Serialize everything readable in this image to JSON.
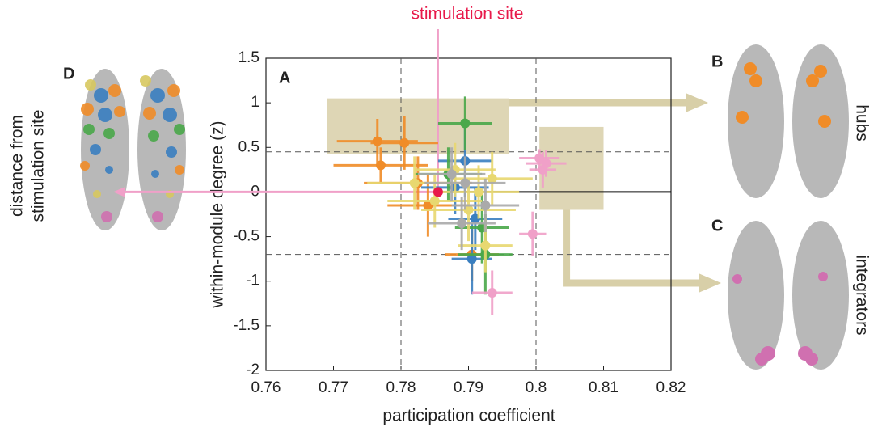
{
  "chart_data": {
    "type": "scatter",
    "stimulation_label": "stimulation site",
    "stimulation_x": 0.7855,
    "xlabel": "participation coefficient",
    "ylabel": "within-module degree (z)",
    "panel_labels": [
      "A",
      "B",
      "C",
      "D"
    ],
    "hubs_label": "hubs",
    "integrators_label": "integrators",
    "distance_label": [
      "distance from",
      "stimulation site"
    ],
    "xlim": [
      0.76,
      0.82
    ],
    "ylim": [
      -2,
      1.5
    ],
    "xticks": [
      0.76,
      0.77,
      0.78,
      0.79,
      0.8,
      0.81,
      0.82
    ],
    "yticks": [
      1.5,
      1,
      0.5,
      0,
      -0.5,
      -1,
      -1.5,
      -2
    ],
    "reference_x": [
      0.78,
      0.8
    ],
    "reference_y": [
      0.45,
      -0.7
    ],
    "hub_region": {
      "xlim": [
        0.769,
        0.796
      ],
      "ylim": [
        0.43,
        1.05
      ]
    },
    "integrator_region": {
      "xlim": [
        0.8005,
        0.81
      ],
      "ylim": [
        -0.2,
        0.73
      ]
    },
    "series": [
      {
        "color": "#f08c28",
        "x": [
          0.7765,
          0.7805,
          0.777,
          0.7825,
          0.784,
          0.7905
        ],
        "y": [
          0.57,
          0.55,
          0.3,
          0.1,
          -0.15,
          -0.7
        ],
        "xerr": [
          0.006,
          0.005,
          0.007,
          0.008,
          0.006,
          0.004
        ],
        "yerr": [
          0.25,
          0.3,
          0.2,
          0.3,
          0.35,
          0.3
        ]
      },
      {
        "color": "#3a7fc0",
        "x": [
          0.7895,
          0.788,
          0.791,
          0.7905
        ],
        "y": [
          0.35,
          0.05,
          -0.3,
          -0.75
        ],
        "xerr": [
          0.004,
          0.005,
          0.004,
          0.003
        ],
        "yerr": [
          0.4,
          0.3,
          0.35,
          0.4
        ]
      },
      {
        "color": "#4aa84a",
        "x": [
          0.7895,
          0.787,
          0.792,
          0.7925
        ],
        "y": [
          0.77,
          0.2,
          -0.4,
          -0.7
        ],
        "xerr": [
          0.004,
          0.005,
          0.004,
          0.004
        ],
        "yerr": [
          0.3,
          0.3,
          0.4,
          0.45
        ]
      },
      {
        "color": "#e8d870",
        "x": [
          0.782,
          0.785,
          0.788,
          0.79,
          0.7915,
          0.7925,
          0.7935
        ],
        "y": [
          0.1,
          -0.1,
          0.25,
          -0.2,
          0,
          -0.6,
          0.15
        ],
        "xerr": [
          0.007,
          0.007,
          0.006,
          0.007,
          0.006,
          0.004,
          0.006
        ],
        "yerr": [
          0.3,
          0.3,
          0.3,
          0.35,
          0.3,
          0.3,
          0.3
        ]
      },
      {
        "color": "#aaaaaa",
        "x": [
          0.7875,
          0.7895,
          0.7925,
          0.789
        ],
        "y": [
          0.2,
          0.1,
          -0.15,
          -0.35
        ],
        "xerr": [
          0.005,
          0.006,
          0.005,
          0.005
        ],
        "yerr": [
          0.3,
          0.3,
          0.3,
          0.3
        ]
      },
      {
        "color": "#f0a0c8",
        "x": [
          0.8005,
          0.8015,
          0.801,
          0.7995,
          0.7935
        ],
        "y": [
          0.38,
          0.32,
          0.25,
          -0.47,
          -1.13
        ],
        "xerr": [
          0.003,
          0.003,
          0.002,
          0.002,
          0.003
        ],
        "yerr": [
          0.1,
          0.15,
          0.2,
          0.25,
          0.25
        ]
      },
      {
        "color": "#e8194a",
        "x": [
          0.7855
        ],
        "y": [
          0
        ],
        "xerr": [
          0
        ],
        "yerr": [
          0
        ]
      }
    ]
  }
}
